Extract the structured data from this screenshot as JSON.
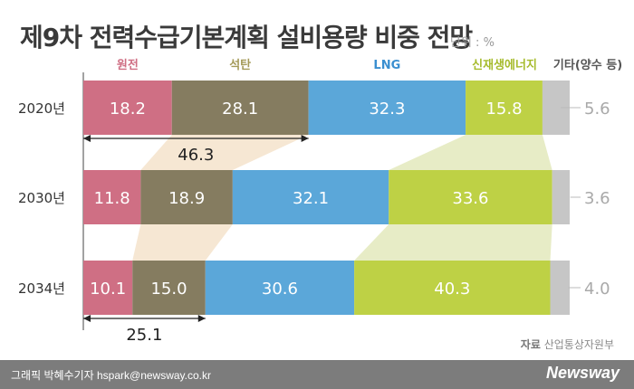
{
  "header": {
    "title": "제9차 전력수급기본계획 설비용량 비중 전망",
    "unit": "단위 : %"
  },
  "chart_data": {
    "type": "bar",
    "orientation": "horizontal-stacked",
    "categories": [
      "2020년",
      "2030년",
      "2034년"
    ],
    "series": [
      {
        "name": "원전",
        "values": [
          18.2,
          11.8,
          10.1
        ],
        "color": "#cf6f84"
      },
      {
        "name": "석탄",
        "values": [
          28.1,
          18.9,
          15.0
        ],
        "color": "#857c60"
      },
      {
        "name": "LNG",
        "values": [
          32.3,
          32.1,
          30.6
        ],
        "color": "#5ba7d9"
      },
      {
        "name": "신재생에너지",
        "values": [
          15.8,
          33.6,
          40.3
        ],
        "color": "#bed145"
      },
      {
        "name": "기타(양수 등)",
        "values": [
          5.6,
          3.6,
          4.0
        ],
        "color": "#c6c6c6"
      }
    ],
    "annotations": [
      {
        "category": "2020년",
        "label": "46.3"
      },
      {
        "category": "2034년",
        "label": "25.1"
      }
    ],
    "legend_colors": {
      "원전": "#cf6f84",
      "석탄": "#a49a58",
      "LNG": "#3a8fd0",
      "신재생에너지": "#a6bb2c",
      "기타(양수 등)": "#555555"
    }
  },
  "source": {
    "label": "자료",
    "text": "산업통상자원부"
  },
  "footer": {
    "credit": "그래픽 박혜수기자 hspark@newsway.co.kr",
    "brand": "Newsway"
  }
}
